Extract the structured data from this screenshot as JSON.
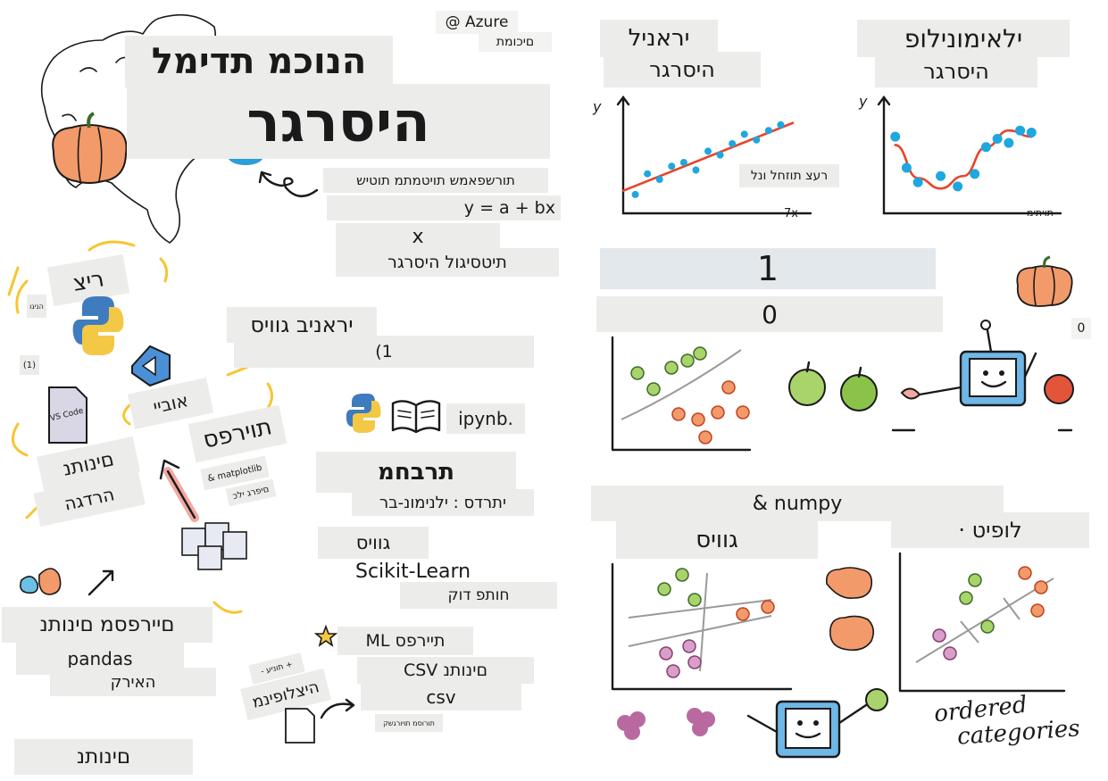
{
  "title": {
    "line1": "הנוכמ תדימל",
    "line2": "היסרגר"
  },
  "azure": {
    "title": "@ Azure",
    "sub": "םיכומת"
  },
  "regression": {
    "formula_caption": "תורשפאמש תויטמתמ תוטיש",
    "formula": "y = a + bx",
    "x_mark": "x",
    "logistic": "תיטסיגול היסרגר"
  },
  "setup": {
    "title": "ריצ",
    "tiny_left_1": "הניגו",
    "tiny_left_2": "(1)",
    "vscode_label": "VS Code",
    "environment": "אוביי",
    "notebooks_1": "םינותנ",
    "notebooks_2": "הרדגה"
  },
  "linear_build": {
    "title": "יראניב גוויס",
    "step": "(1"
  },
  "notebook": {
    "ext": "ipynb."
  },
  "visualize": {
    "title": "תוירפס",
    "matplotlib": "& matplotlib",
    "sub": "םיפרג ילכ"
  },
  "recipe": {
    "title": "תרבחמ",
    "line2": "יתרדס : ילנימונ-בר",
    "classify": "גוויס",
    "sklearn": "Scikit-Learn",
    "report": "חותפ דוק"
  },
  "ml_libs": {
    "title": "תיירפס ML",
    "csv_data": "םינותנ CSV",
    "csv": "csv",
    "tiny": "תורוסמ תויורגשק"
  },
  "data_clean": {
    "title": "םיירפסמ םינותנ",
    "pandas": "pandas",
    "prep": "האירק"
  },
  "data_bottom": {
    "title": "םינותנ"
  },
  "stickynote": {
    "line1": "+ תוניע -",
    "line2": "היצלופינמ"
  },
  "linear_chart": {
    "title": "יראניל",
    "sub": "היסרגר",
    "note": "רעצ תוזחל ונל",
    "ylabel": "y",
    "xlabel": "7x"
  },
  "poly_chart": {
    "title": "ילאימונילופ",
    "sub": "היסרגר",
    "ylabel": "y",
    "xlabel": "תויתימ"
  },
  "binary": {
    "one": "1",
    "zero": "0",
    "zero_small": "0"
  },
  "numpy_box": {
    "text": "& numpy"
  },
  "multi": {
    "title": "גוויס"
  },
  "ordinal": {
    "title": "לופיט ·",
    "note_line1": "ordered",
    "note_line2": "categories"
  },
  "colors": {
    "pumpkin": "#f29a6a",
    "apple_green": "#8bc34a",
    "apple_red": "#e2553b",
    "dot_blue": "#1ea7e0",
    "line_red": "#e8432b",
    "grape": "#b86aa0",
    "python_blue": "#3f7bbf",
    "python_yellow": "#f3c845"
  },
  "chart_data": [
    {
      "type": "scatter",
      "title": "יראניל",
      "subtitle": "היסרגר",
      "xlabel": "7x",
      "ylabel": "y",
      "x": [
        1,
        2,
        3,
        4,
        5,
        6,
        7,
        8,
        9,
        10,
        11,
        12,
        13
      ],
      "y": [
        2.0,
        4.2,
        3.6,
        5.0,
        5.4,
        4.6,
        6.6,
        6.2,
        7.4,
        8.4,
        7.8,
        8.8,
        9.4
      ],
      "trend": {
        "x": [
          0,
          14
        ],
        "y": [
          2.4,
          9.6
        ]
      }
    },
    {
      "type": "scatter",
      "title": "ילאימונילופ",
      "subtitle": "היסרגר",
      "xlabel": "תויתימ",
      "ylabel": "y",
      "x": [
        1,
        2,
        3,
        5,
        6.5,
        8,
        9,
        10,
        11,
        12,
        13
      ],
      "y": [
        7.4,
        4.4,
        3.0,
        3.6,
        2.6,
        3.8,
        6.4,
        7.2,
        6.8,
        8.0,
        7.8
      ],
      "curve": {
        "x": [
          1,
          3,
          5,
          7,
          9,
          11,
          13
        ],
        "y": [
          6.6,
          3.4,
          2.4,
          3.6,
          6.4,
          8.0,
          7.4
        ]
      }
    }
  ]
}
